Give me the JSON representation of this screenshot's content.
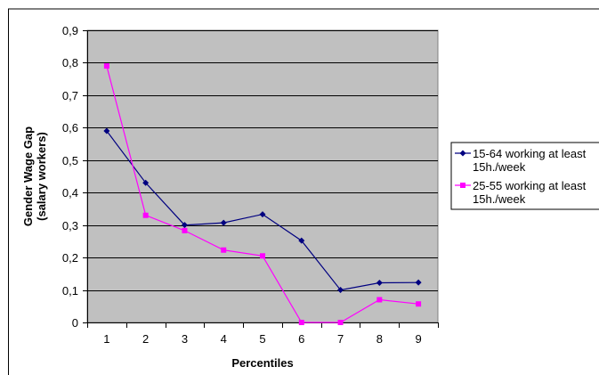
{
  "chart_data": {
    "type": "line",
    "title": "",
    "xlabel": "Percentiles",
    "ylabel_lines": [
      "Gender Wage Gap",
      "(salary workers)"
    ],
    "x": [
      1,
      2,
      3,
      4,
      5,
      6,
      7,
      8,
      9
    ],
    "x_tick_labels": [
      "1",
      "2",
      "3",
      "4",
      "5",
      "6",
      "7",
      "8",
      "9"
    ],
    "ylim": [
      0,
      0.9
    ],
    "y_ticks": [
      0,
      0.1,
      0.2,
      0.3,
      0.4,
      0.5,
      0.6,
      0.7,
      0.8,
      0.9
    ],
    "y_tick_labels": [
      "0",
      "0,1",
      "0,2",
      "0,3",
      "0,4",
      "0,5",
      "0,6",
      "0,7",
      "0,8",
      "0,9"
    ],
    "grid": true,
    "plot_background": "#c0c0c0",
    "legend_position": "right",
    "series": [
      {
        "name_lines": [
          "15-64 working at least",
          "15h./week"
        ],
        "color": "#000080",
        "marker": "diamond",
        "values": [
          0.59,
          0.43,
          0.3,
          0.307,
          0.333,
          0.252,
          0.1,
          0.122,
          0.123
        ]
      },
      {
        "name_lines": [
          "25-55 working at least",
          "15h./week"
        ],
        "color": "#ff00ff",
        "marker": "square",
        "values": [
          0.79,
          0.33,
          0.283,
          0.223,
          0.205,
          0.0,
          0.0,
          0.07,
          0.057
        ]
      }
    ]
  }
}
